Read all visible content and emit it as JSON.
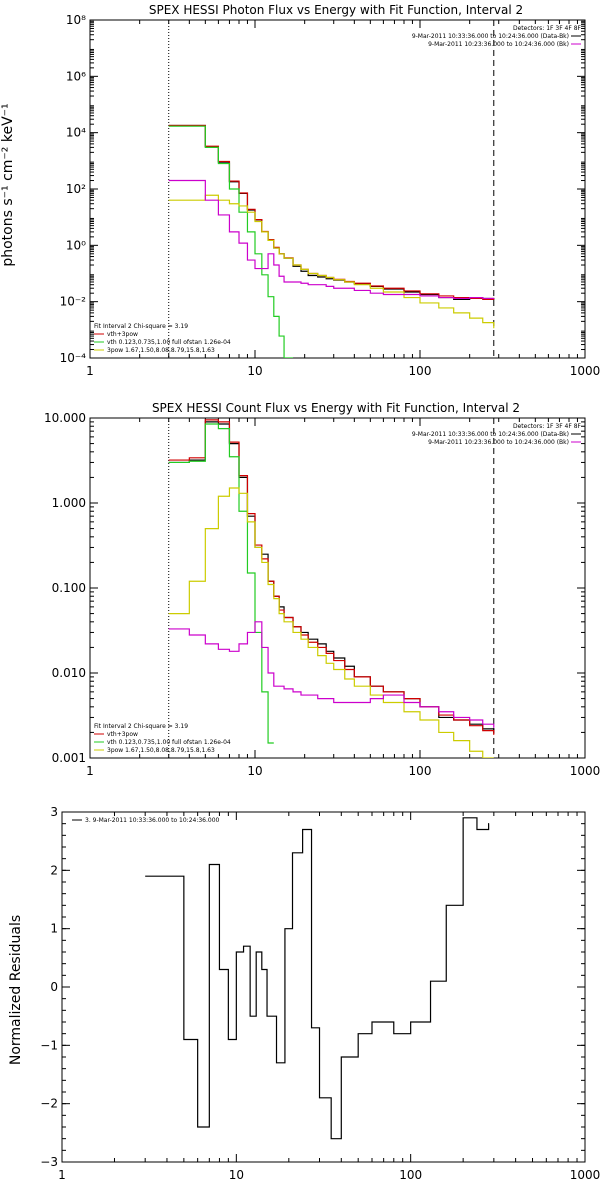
{
  "chart_data": [
    {
      "type": "line",
      "title": "SPEX HESSI Photon Flux vs Energy with Fit Function, Interval 2",
      "ylabel": "photons s⁻¹ cm⁻² keV⁻¹",
      "xlabel": "",
      "x_scale": "log",
      "y_scale": "log",
      "xlim": [
        1,
        1000
      ],
      "ylim": [
        0.0001,
        100000000
      ],
      "x_tick_labels": [
        "1",
        "10",
        "100",
        "1000"
      ],
      "y_tick_labels": [
        "10⁻⁴",
        "10⁻²",
        "10⁰",
        "10²",
        "10⁴",
        "10⁶",
        "10⁸"
      ],
      "grid": false,
      "vertical_lines": [
        {
          "x": 3.0,
          "style": "dotted"
        },
        {
          "x": 280,
          "style": "dashed"
        }
      ],
      "legend_top": {
        "position": "top-right",
        "lines": [
          "Detectors: 1F 3F 4F 8F",
          "9-Mar-2011 10:33:36.000 to 10:24:36.000 (Data-Bk)",
          "9-Mar-2011 10:23:36.000 to 10:24:36.000 (Bk)"
        ]
      },
      "legend_bottom": {
        "position": "bottom-left",
        "lines": [
          "Fit Interval 2   Chi-square = 3.19",
          "vth+3pow",
          "vth 0.123,0.735,1.00  full ofstan 1.26e-04",
          "3pow 1.67,1.50,8.08,8.79,15.8,1.63"
        ]
      },
      "x": [
        3,
        4,
        5,
        6,
        7,
        8,
        9,
        10,
        11,
        12,
        13,
        14,
        15,
        17,
        19,
        21,
        24,
        27,
        30,
        35,
        40,
        50,
        60,
        80,
        100,
        130,
        160,
        200,
        240,
        280
      ],
      "series": [
        {
          "name": "Data-Bk",
          "color": "#000000",
          "values": [
            18000,
            18000,
            3200,
            900,
            180,
            70,
            18,
            8,
            3,
            1.5,
            0.8,
            0.5,
            0.35,
            0.18,
            0.12,
            0.085,
            0.075,
            0.065,
            0.058,
            0.05,
            0.043,
            0.035,
            0.028,
            0.022,
            0.018,
            0.014,
            0.012,
            0.014,
            0.013,
            0.012
          ]
        },
        {
          "name": "vth+3pow",
          "color": "#d00000",
          "values": [
            18000,
            18000,
            3300,
            950,
            190,
            72,
            19,
            8.2,
            3.1,
            1.6,
            0.85,
            0.5,
            0.36,
            0.2,
            0.14,
            0.1,
            0.085,
            0.072,
            0.062,
            0.052,
            0.045,
            0.036,
            0.03,
            0.024,
            0.019,
            0.016,
            0.014,
            0.013,
            0.012,
            0.012
          ]
        },
        {
          "name": "vth",
          "color": "#22cc22",
          "values": [
            17000,
            17000,
            3000,
            800,
            100,
            15,
            3,
            0.5,
            0.09,
            0.015,
            0.003,
            0.0006,
            0.0001,
            null,
            null,
            null,
            null,
            null,
            null,
            null,
            null,
            null,
            null,
            null,
            null,
            null,
            null,
            null,
            null,
            null
          ]
        },
        {
          "name": "3pow",
          "color": "#cccc00",
          "values": [
            40,
            40,
            60,
            40,
            30,
            25,
            15,
            7,
            3,
            1.5,
            0.8,
            0.5,
            0.35,
            0.2,
            0.14,
            0.1,
            0.085,
            0.072,
            0.06,
            0.05,
            0.04,
            0.03,
            0.022,
            0.014,
            0.009,
            0.006,
            0.004,
            0.0026,
            0.0018,
            0.0012
          ]
        },
        {
          "name": "Bk",
          "color": "#cc00cc",
          "values": [
            200,
            200,
            40,
            12,
            3,
            1.2,
            0.3,
            0.15,
            0.15,
            0.5,
            0.2,
            0.08,
            0.05,
            0.05,
            0.045,
            0.04,
            0.04,
            0.035,
            0.03,
            0.03,
            0.025,
            0.02,
            0.018,
            0.018,
            0.016,
            0.014,
            0.013,
            0.014,
            0.013,
            0.013
          ]
        }
      ]
    },
    {
      "type": "line",
      "title": "SPEX HESSI Count Flux vs Energy with Fit Function, Interval 2",
      "ylabel": "",
      "xlabel": "",
      "x_scale": "log",
      "y_scale": "log",
      "xlim": [
        1,
        1000
      ],
      "ylim": [
        0.001,
        10
      ],
      "x_tick_labels": [
        "1",
        "10",
        "100",
        "1000"
      ],
      "y_tick_labels": [
        "0.001",
        "0.010",
        "0.100",
        "1.000",
        "10.000"
      ],
      "grid": false,
      "vertical_lines": [
        {
          "x": 3.0,
          "style": "dotted"
        },
        {
          "x": 280,
          "style": "dashed"
        }
      ],
      "legend_top": {
        "position": "top-right",
        "lines": [
          "Detectors: 1F 3F 4F 8F",
          "9-Mar-2011 10:33:36.000 to 10:24:36.000 (Data-Bk)",
          "9-Mar-2011 10:23:36.000 to 10:24:36.000 (Bk)"
        ]
      },
      "legend_bottom": {
        "position": "bottom-left",
        "lines": [
          "Fit Interval 2   Chi-square = 3.19",
          "vth+3pow",
          "vth 0.123,0.735,1.00  full ofstan 1.26e-04",
          "3pow 1.67,1.50,8.08,8.79,15.8,1.63"
        ]
      },
      "x": [
        3,
        4,
        5,
        6,
        7,
        8,
        9,
        10,
        11,
        12,
        13,
        14,
        15,
        17,
        19,
        21,
        24,
        27,
        30,
        35,
        40,
        50,
        60,
        80,
        100,
        130,
        160,
        200,
        240,
        280
      ],
      "series": [
        {
          "name": "Data-Bk",
          "color": "#000000",
          "values": [
            3,
            3.2,
            9,
            8.5,
            5,
            2,
            0.7,
            0.3,
            0.25,
            0.12,
            0.08,
            0.06,
            0.045,
            0.035,
            0.03,
            0.025,
            0.022,
            0.018,
            0.015,
            0.012,
            0.009,
            0.007,
            0.006,
            0.005,
            0.004,
            0.003,
            0.0028,
            0.0025,
            0.0022,
            0.002
          ]
        },
        {
          "name": "vth+3pow",
          "color": "#d00000",
          "values": [
            3.2,
            3.4,
            9.5,
            9,
            5.2,
            2.1,
            0.75,
            0.32,
            0.22,
            0.12,
            0.08,
            0.055,
            0.045,
            0.035,
            0.028,
            0.023,
            0.02,
            0.017,
            0.014,
            0.011,
            0.009,
            0.007,
            0.006,
            0.005,
            0.004,
            0.0032,
            0.0028,
            0.0024,
            0.0021,
            0.0019
          ]
        },
        {
          "name": "vth",
          "color": "#22cc22",
          "values": [
            3,
            3.1,
            8.5,
            7.5,
            3.5,
            0.8,
            0.15,
            0.03,
            0.006,
            0.0015,
            null,
            null,
            null,
            null,
            null,
            null,
            null,
            null,
            null,
            null,
            null,
            null,
            null,
            null,
            null,
            null,
            null,
            null,
            null,
            null
          ]
        },
        {
          "name": "3pow",
          "color": "#cccc00",
          "values": [
            0.05,
            0.12,
            0.5,
            1.2,
            1.5,
            1.3,
            0.6,
            0.3,
            0.2,
            0.11,
            0.075,
            0.05,
            0.04,
            0.03,
            0.025,
            0.02,
            0.016,
            0.013,
            0.011,
            0.0085,
            0.007,
            0.0055,
            0.0045,
            0.0035,
            0.0028,
            0.002,
            0.0016,
            0.0012,
            0.001,
            null
          ]
        },
        {
          "name": "Bk",
          "color": "#cc00cc",
          "values": [
            0.033,
            0.028,
            0.022,
            0.019,
            0.018,
            0.022,
            0.03,
            0.04,
            0.02,
            0.01,
            0.007,
            0.007,
            0.0065,
            0.006,
            0.0055,
            0.0055,
            0.005,
            0.005,
            0.0045,
            0.0045,
            0.0045,
            0.005,
            0.0055,
            0.0045,
            0.004,
            0.0035,
            0.003,
            0.0028,
            0.0025,
            0.0023
          ]
        }
      ]
    },
    {
      "type": "line",
      "title": "",
      "ylabel": "Normalized Residuals",
      "xlabel": "",
      "x_scale": "log",
      "y_scale": "linear",
      "xlim": [
        1,
        1000
      ],
      "ylim": [
        -3,
        3
      ],
      "x_tick_labels": [
        "1",
        "10",
        "100",
        "1000"
      ],
      "y_tick_labels": [
        "−3",
        "−2",
        "−1",
        "0",
        "1",
        "2",
        "3"
      ],
      "grid": false,
      "legend_top": {
        "position": "top-left",
        "lines": [
          "3. 9-Mar-2011 10:33:36.000 to 10:24:36.000"
        ]
      },
      "x": [
        3,
        4,
        5,
        6,
        7,
        8,
        9,
        10,
        11,
        12,
        13,
        14,
        15,
        17,
        19,
        21,
        24,
        27,
        30,
        35,
        40,
        50,
        60,
        80,
        100,
        130,
        160,
        200,
        240,
        280
      ],
      "series": [
        {
          "name": "",
          "color": "#000000",
          "values": [
            1.9,
            1.9,
            -0.9,
            -2.4,
            2.1,
            0.3,
            -0.9,
            0.6,
            0.7,
            -0.5,
            0.6,
            0.3,
            -0.5,
            -1.3,
            1.0,
            2.3,
            2.7,
            -0.7,
            -1.9,
            -2.6,
            -1.2,
            -0.8,
            -0.6,
            -0.8,
            -0.6,
            0.1,
            1.4,
            2.9,
            2.7,
            2.8
          ]
        }
      ]
    }
  ]
}
